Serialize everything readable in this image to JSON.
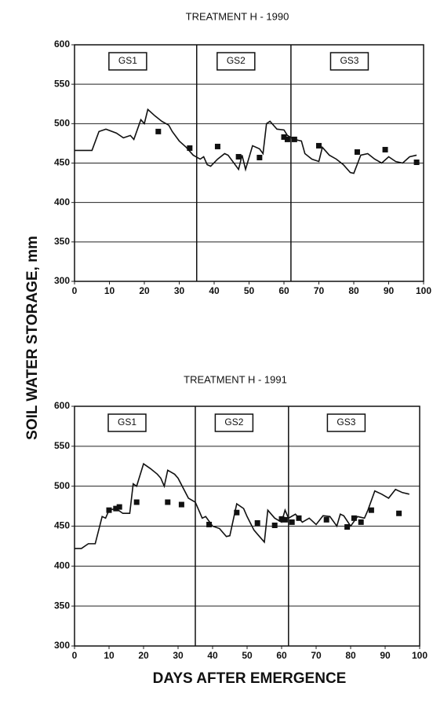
{
  "ylabel": "SOIL WATER STORAGE, mm",
  "xlabel": "DAYS AFTER EMERGENCE",
  "chart_data": [
    {
      "type": "line",
      "title": "TREATMENT H - 1990",
      "xlim": [
        0,
        100
      ],
      "ylim": [
        300,
        600
      ],
      "xticks": [
        0,
        10,
        20,
        30,
        40,
        50,
        60,
        70,
        80,
        90,
        100
      ],
      "yticks": [
        300,
        350,
        400,
        450,
        500,
        550,
        600
      ],
      "grid": true,
      "stages": [
        "GS1",
        "GS2",
        "GS3"
      ],
      "stage_bounds": [
        35,
        62
      ],
      "series": [
        {
          "color": "#111111",
          "style": "line",
          "x": [
            0,
            5,
            7,
            9,
            12,
            14,
            16,
            17,
            19,
            20,
            21,
            23,
            25,
            27,
            28,
            30,
            32,
            34,
            36,
            37,
            38,
            39,
            41,
            43,
            44,
            46,
            47,
            48,
            49,
            51,
            53,
            54,
            55,
            56,
            58,
            60,
            61,
            63,
            65,
            66,
            68,
            70,
            71,
            73,
            75,
            77,
            79,
            80,
            82,
            84,
            86,
            88,
            90,
            92,
            94,
            96,
            98
          ],
          "values": [
            466,
            466,
            490,
            493,
            488,
            482,
            485,
            480,
            505,
            500,
            518,
            510,
            503,
            498,
            490,
            478,
            470,
            460,
            455,
            458,
            448,
            446,
            455,
            462,
            460,
            448,
            442,
            460,
            442,
            472,
            468,
            462,
            500,
            503,
            493,
            492,
            485,
            480,
            478,
            462,
            455,
            452,
            470,
            460,
            455,
            448,
            438,
            437,
            460,
            462,
            455,
            450,
            458,
            452,
            450,
            458,
            460
          ]
        },
        {
          "color": "#111111",
          "style": "square",
          "x": [
            24,
            33,
            41,
            47,
            53,
            60,
            61,
            63,
            70,
            81,
            89,
            98
          ],
          "values": [
            490,
            469,
            471,
            458,
            457,
            483,
            480,
            480,
            472,
            464,
            467,
            451
          ]
        }
      ]
    },
    {
      "type": "line",
      "title": "TREATMENT H - 1991",
      "xlim": [
        0,
        100
      ],
      "ylim": [
        300,
        600
      ],
      "xticks": [
        0,
        10,
        20,
        30,
        40,
        50,
        60,
        70,
        80,
        90,
        100
      ],
      "yticks": [
        300,
        350,
        400,
        450,
        500,
        550,
        600
      ],
      "grid": true,
      "stages": [
        "GS1",
        "GS2",
        "GS3"
      ],
      "stage_bounds": [
        35,
        62
      ],
      "series": [
        {
          "color": "#111111",
          "style": "line",
          "x": [
            0,
            2,
            4,
            6,
            8,
            9,
            10,
            12,
            14,
            16,
            17,
            18,
            20,
            22,
            24,
            25,
            26,
            27,
            29,
            30,
            33,
            35,
            37,
            38,
            40,
            42,
            44,
            45,
            47,
            49,
            50,
            52,
            53,
            55,
            56,
            58,
            60,
            61,
            62,
            64,
            66,
            68,
            70,
            72,
            74,
            76,
            77,
            78,
            80,
            82,
            84,
            85,
            87,
            89,
            91,
            93,
            95,
            97
          ],
          "values": [
            422,
            422,
            428,
            428,
            462,
            460,
            470,
            472,
            466,
            466,
            503,
            500,
            528,
            522,
            515,
            510,
            500,
            520,
            515,
            510,
            485,
            480,
            460,
            462,
            450,
            447,
            437,
            438,
            478,
            472,
            462,
            445,
            440,
            430,
            470,
            460,
            455,
            470,
            460,
            465,
            455,
            460,
            452,
            463,
            462,
            450,
            465,
            463,
            450,
            462,
            460,
            470,
            494,
            490,
            485,
            496,
            492,
            490
          ]
        },
        {
          "color": "#111111",
          "style": "square",
          "x": [
            10,
            12,
            13,
            18,
            27,
            31,
            39,
            47,
            53,
            58,
            60,
            61,
            63,
            65,
            73,
            79,
            81,
            83,
            86,
            94
          ],
          "values": [
            470,
            472,
            474,
            480,
            480,
            477,
            452,
            467,
            454,
            451,
            459,
            458,
            455,
            460,
            458,
            449,
            460,
            455,
            470,
            466
          ]
        }
      ]
    }
  ]
}
